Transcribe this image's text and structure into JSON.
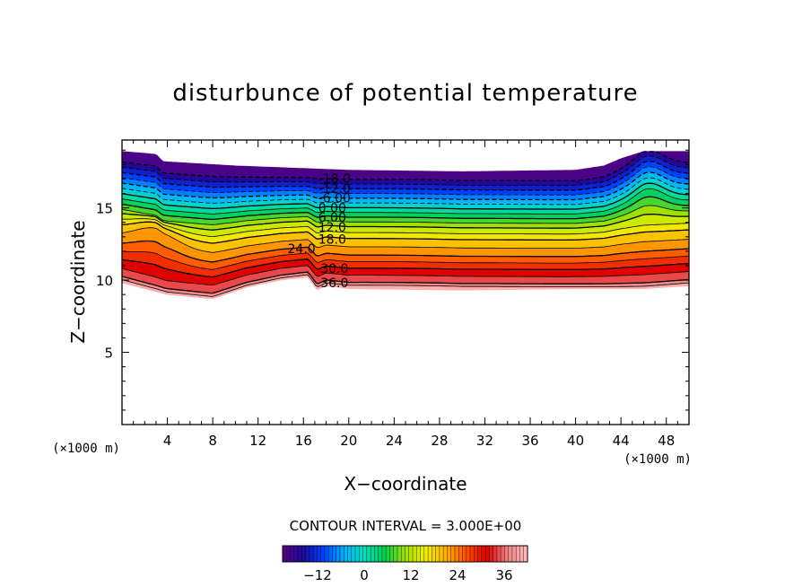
{
  "chart_data": {
    "type": "contour",
    "title": "disturbunce of potential temperature",
    "xlabel": "X−coordinate",
    "ylabel": "Z−coordinate",
    "x_unit": "(×1000 m)",
    "y_unit": "(×1000 m)",
    "xlim": [
      0,
      50
    ],
    "ylim": [
      0,
      19.7
    ],
    "x_ticks": [
      "4",
      "8",
      "12",
      "16",
      "20",
      "24",
      "28",
      "32",
      "36",
      "40",
      "44",
      "48"
    ],
    "y_ticks": [
      "5",
      "10",
      "15"
    ],
    "contour_interval_text": "CONTOUR INTERVAL = 3.000E+00",
    "contour_labels": [
      "-18.0",
      "-12.0",
      "-6.00",
      "0.00",
      "6.00",
      "12.0",
      "18.0",
      "24.0",
      "30.0",
      "36.0"
    ],
    "colorbar": {
      "min": -21,
      "max": 42,
      "tick_labels": [
        "−12",
        "0",
        "12",
        "24",
        "36"
      ],
      "tick_values": [
        -12,
        0,
        12,
        24,
        36
      ]
    },
    "negative_contours": "dashed",
    "colormap": [
      "#5a0080",
      "#1a0aa0",
      "#0040ff",
      "#00b0ff",
      "#00e0c0",
      "#00d050",
      "#a0e000",
      "#f0f000",
      "#ffb000",
      "#ff5000",
      "#e00000",
      "#f08080",
      "#ffc0c0"
    ]
  }
}
